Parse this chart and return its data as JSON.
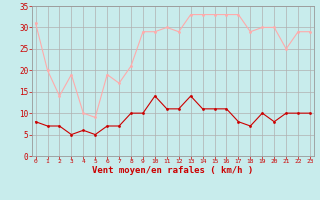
{
  "hours": [
    0,
    1,
    2,
    3,
    4,
    5,
    6,
    7,
    8,
    9,
    10,
    11,
    12,
    13,
    14,
    15,
    16,
    17,
    18,
    19,
    20,
    21,
    22,
    23
  ],
  "wind_avg": [
    8,
    7,
    7,
    5,
    6,
    5,
    7,
    7,
    10,
    10,
    14,
    11,
    11,
    14,
    11,
    11,
    11,
    8,
    7,
    10,
    8,
    10,
    10,
    10
  ],
  "wind_gust": [
    31,
    20,
    14,
    19,
    10,
    9,
    19,
    17,
    21,
    29,
    29,
    30,
    29,
    33,
    33,
    33,
    33,
    33,
    29,
    30,
    30,
    25,
    29,
    29
  ],
  "bg_color": "#c8ecec",
  "grid_color": "#b0b0b0",
  "line_avg_color": "#cc0000",
  "line_gust_color": "#ffaaaa",
  "xlabel": "Vent moyen/en rafales ( km/h )",
  "xlabel_color": "#cc0000",
  "tick_color": "#cc0000",
  "ylim": [
    0,
    35
  ],
  "yticks": [
    0,
    5,
    10,
    15,
    20,
    25,
    30,
    35
  ]
}
